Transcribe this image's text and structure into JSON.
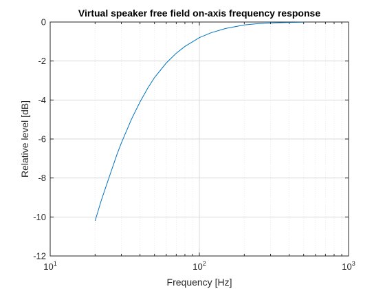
{
  "colors": {
    "series": "#0072bd",
    "grid_major": "#d9d9d9",
    "grid_minor": "#ebebeb",
    "axis": "#262626"
  },
  "chart_data": {
    "type": "line",
    "title": "Virtual speaker free field on-axis frequency response",
    "xlabel": "Frequency [Hz]",
    "ylabel": "Relative level [dB]",
    "xscale": "log",
    "xlim": [
      10,
      1000
    ],
    "ylim": [
      -12,
      0
    ],
    "grid": true,
    "minor_grid": true,
    "xticks": [
      {
        "value": 10,
        "base": "10",
        "exp": "1"
      },
      {
        "value": 100,
        "base": "10",
        "exp": "2"
      },
      {
        "value": 1000,
        "base": "10",
        "exp": "3"
      }
    ],
    "yticks": [
      0,
      -2,
      -4,
      -6,
      -8,
      -10,
      -12
    ],
    "series": [
      {
        "x": [
          20,
          22,
          25,
          28,
          30,
          35,
          40,
          45,
          50,
          60,
          70,
          80,
          100,
          120,
          150,
          200,
          250,
          300,
          400,
          500
        ],
        "y": [
          -10.2,
          -9.15,
          -7.9,
          -6.8,
          -6.2,
          -5.0,
          -4.1,
          -3.4,
          -2.85,
          -2.1,
          -1.6,
          -1.25,
          -0.8,
          -0.55,
          -0.33,
          -0.15,
          -0.08,
          -0.05,
          -0.02,
          -0.01
        ]
      }
    ]
  }
}
